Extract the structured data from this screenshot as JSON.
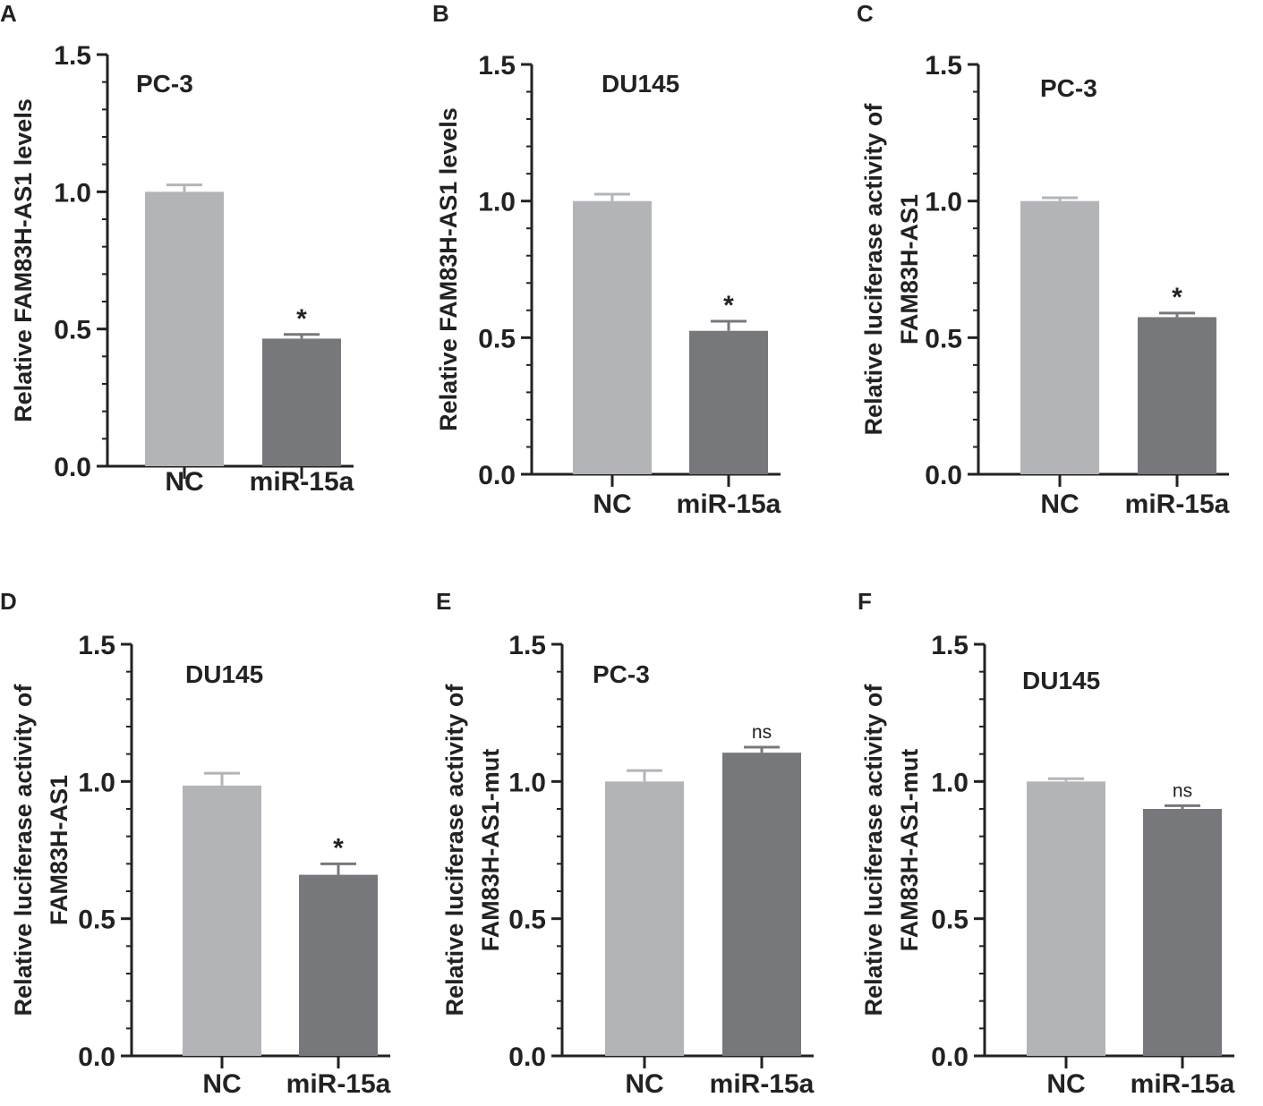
{
  "figure": {
    "background": "#ffffff",
    "axis_color": "#222222"
  },
  "chart_data": [
    {
      "panel": "A",
      "type": "bar",
      "title": "PC-3",
      "ylabel": [
        "Relative FAM83H-AS1 levels"
      ],
      "categories": [
        "NC",
        "miR-15a"
      ],
      "values": [
        1.0,
        0.465
      ],
      "errors": [
        0.025,
        0.015
      ],
      "significance": [
        "",
        "*"
      ],
      "colors": [
        "#b2b4b8",
        "#77787c"
      ],
      "ylim": [
        0,
        1.5
      ],
      "yticks": [
        "0.0",
        "0.5",
        "1.0",
        "1.5"
      ]
    },
    {
      "panel": "B",
      "type": "bar",
      "title": "DU145",
      "ylabel": [
        "Relative FAM83H-AS1 levels"
      ],
      "categories": [
        "NC",
        "miR-15a"
      ],
      "values": [
        1.0,
        0.525
      ],
      "errors": [
        0.025,
        0.035
      ],
      "significance": [
        "",
        "*"
      ],
      "colors": [
        "#b2b4b8",
        "#77787c"
      ],
      "ylim": [
        0,
        1.5
      ],
      "yticks": [
        "0.0",
        "0.5",
        "1.0",
        "1.5"
      ]
    },
    {
      "panel": "C",
      "type": "bar",
      "title": "PC-3",
      "ylabel": [
        "Relative luciferase activity of",
        "FAM83H-AS1"
      ],
      "categories": [
        "NC",
        "miR-15a"
      ],
      "values": [
        1.0,
        0.575
      ],
      "errors": [
        0.012,
        0.015
      ],
      "significance": [
        "",
        "*"
      ],
      "colors": [
        "#b2b4b8",
        "#77787c"
      ],
      "ylim": [
        0,
        1.5
      ],
      "yticks": [
        "0.0",
        "0.5",
        "1.0",
        "1.5"
      ]
    },
    {
      "panel": "D",
      "type": "bar",
      "title": "DU145",
      "ylabel": [
        "Relative luciferase activity of",
        "FAM83H-AS1"
      ],
      "categories": [
        "NC",
        "miR-15a"
      ],
      "values": [
        0.985,
        0.66
      ],
      "errors": [
        0.045,
        0.04
      ],
      "significance": [
        "",
        "*"
      ],
      "colors": [
        "#b2b4b8",
        "#77787c"
      ],
      "ylim": [
        0,
        1.5
      ],
      "yticks": [
        "0.0",
        "0.5",
        "1.0",
        "1.5"
      ]
    },
    {
      "panel": "E",
      "type": "bar",
      "title": "PC-3",
      "ylabel": [
        "Relative luciferase activity of",
        "FAM83H-AS1-mut"
      ],
      "categories": [
        "NC",
        "miR-15a"
      ],
      "values": [
        1.0,
        1.105
      ],
      "errors": [
        0.04,
        0.02
      ],
      "significance": [
        "",
        "ns"
      ],
      "colors": [
        "#b2b4b8",
        "#77787c"
      ],
      "ylim": [
        0,
        1.5
      ],
      "yticks": [
        "0.0",
        "0.5",
        "1.0",
        "1.5"
      ]
    },
    {
      "panel": "F",
      "type": "bar",
      "title": "DU145",
      "ylabel": [
        "Relative luciferase activity of",
        "FAM83H-AS1-mut"
      ],
      "categories": [
        "NC",
        "miR-15a"
      ],
      "values": [
        1.0,
        0.9
      ],
      "errors": [
        0.01,
        0.012
      ],
      "significance": [
        "",
        "ns"
      ],
      "colors": [
        "#b2b4b8",
        "#77787c"
      ],
      "ylim": [
        0,
        1.5
      ],
      "yticks": [
        "0.0",
        "0.5",
        "1.0",
        "1.5"
      ]
    }
  ]
}
